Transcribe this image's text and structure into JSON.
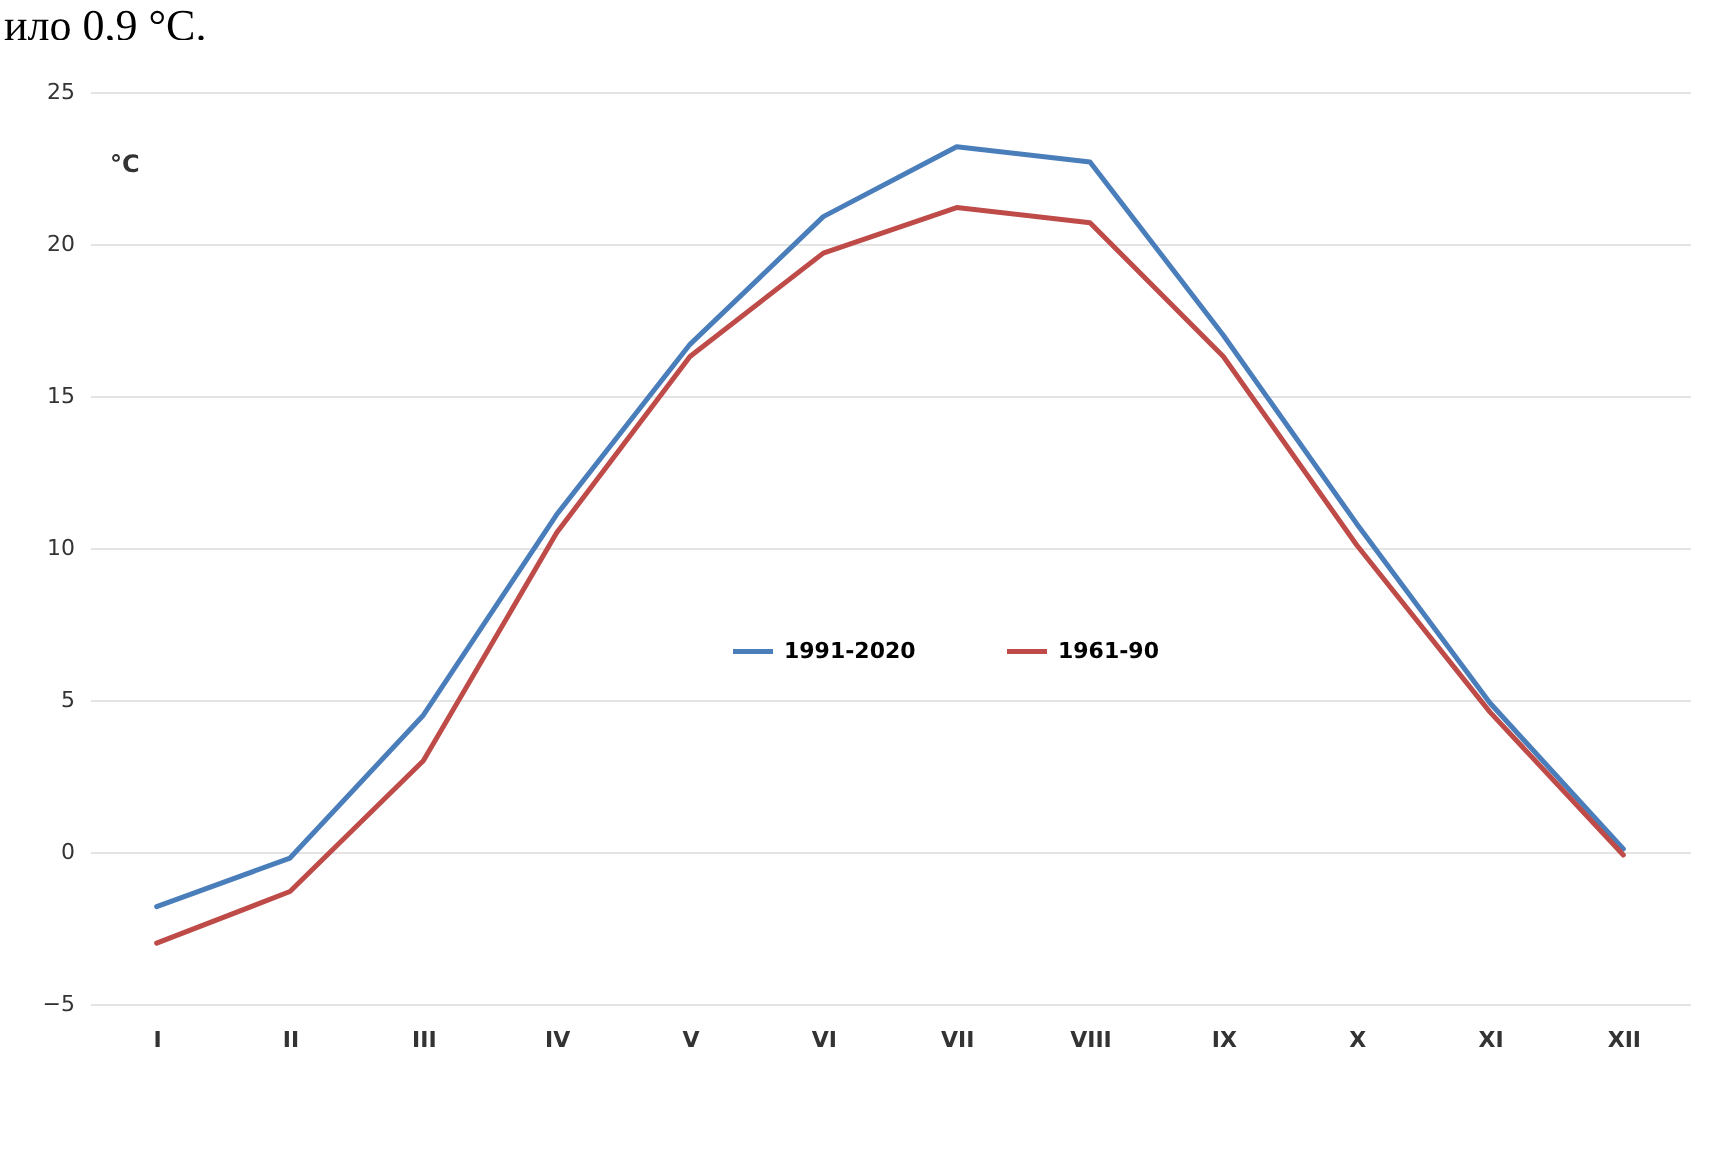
{
  "chart_data": {
    "type": "line",
    "ylabel": "°C",
    "annotations": [
      "ило 0,9 °С."
    ],
    "categories": [
      "I",
      "II",
      "III",
      "IV",
      "V",
      "VI",
      "VII",
      "VIII",
      "IX",
      "X",
      "XI",
      "XII"
    ],
    "series": [
      {
        "name": "1991-2020",
        "color": "#4a7ebb",
        "values": [
          -1.8,
          -0.2,
          4.5,
          11.1,
          16.7,
          20.9,
          23.2,
          22.7,
          17.0,
          10.8,
          4.9,
          0.1
        ]
      },
      {
        "name": "1961-90",
        "color": "#be4b48",
        "values": [
          -3.0,
          -1.3,
          3.0,
          10.5,
          16.3,
          19.7,
          21.2,
          20.7,
          16.3,
          10.1,
          4.6,
          -0.1
        ]
      }
    ],
    "ylim": [
      -5,
      25
    ],
    "yticks": [
      -5,
      0,
      5,
      10,
      15,
      20,
      25
    ],
    "grid": "y",
    "legend": "center",
    "line_style": "solid",
    "marker": "none"
  }
}
